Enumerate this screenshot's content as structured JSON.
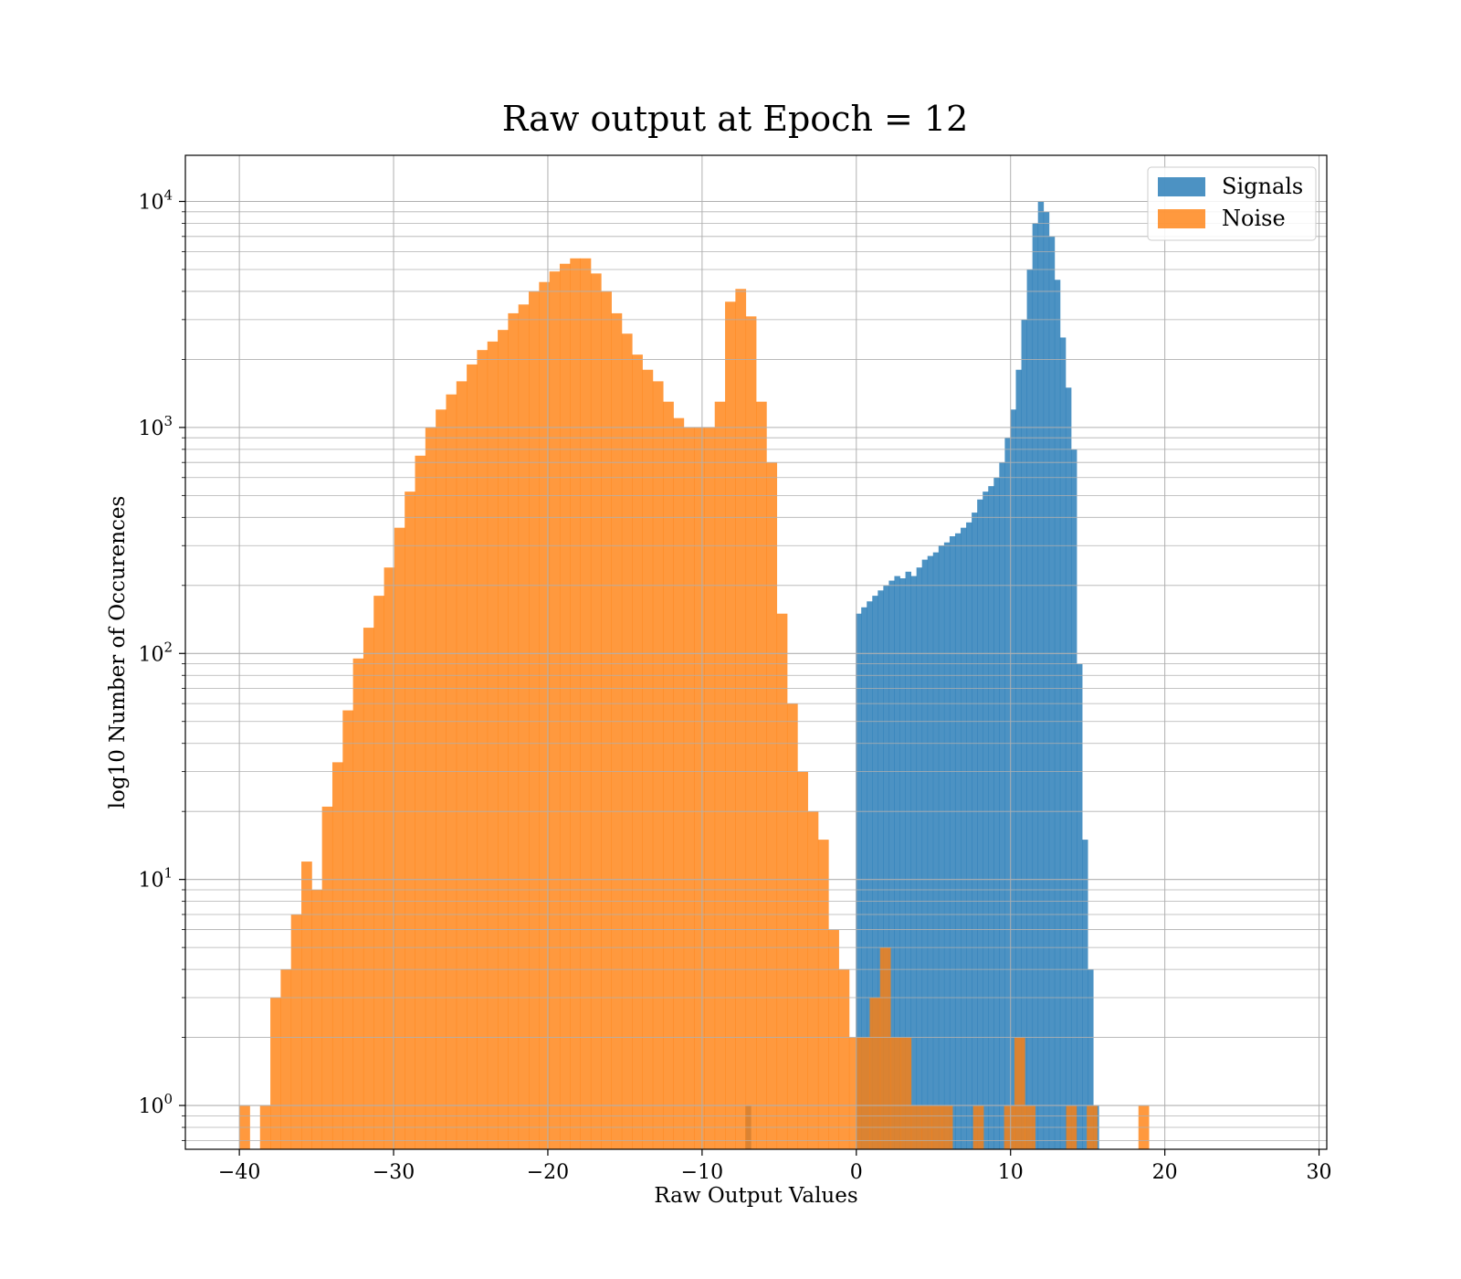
{
  "chart_data": {
    "type": "bar",
    "title": "Raw output at Epoch = 12",
    "xlabel": "Raw Output Values",
    "ylabel": "log10 Number of Occurences",
    "xlim": [
      -43.5,
      30.5
    ],
    "ylim": [
      0.64,
      16000
    ],
    "yscale": "log",
    "grid": true,
    "legend": "top-right",
    "colors": {
      "signals": "#1f77b4",
      "noise": "#ff7f0e",
      "grid": "#b0b0b0"
    },
    "x_ticks": [
      {
        "value": -40,
        "label": "−40"
      },
      {
        "value": -30,
        "label": "−30"
      },
      {
        "value": -20,
        "label": "−20"
      },
      {
        "value": -10,
        "label": "−10"
      },
      {
        "value": 0,
        "label": "0"
      },
      {
        "value": 10,
        "label": "10"
      },
      {
        "value": 20,
        "label": "20"
      },
      {
        "value": 30,
        "label": "30"
      }
    ],
    "y_ticks": [
      {
        "value": 1,
        "base": "10",
        "exp": "0"
      },
      {
        "value": 10,
        "base": "10",
        "exp": "1"
      },
      {
        "value": 100,
        "base": "10",
        "exp": "2"
      },
      {
        "value": 1000,
        "base": "10",
        "exp": "3"
      },
      {
        "value": 10000,
        "base": "10",
        "exp": "4"
      }
    ],
    "series": [
      {
        "name": "Signals",
        "bin_start": -7.2,
        "bin_width": 0.358,
        "alpha": 0.8,
        "counts": [
          1,
          0,
          0,
          0,
          0,
          0,
          0,
          0,
          0,
          0,
          0,
          0,
          0,
          0,
          0,
          0,
          0,
          0,
          0,
          0,
          150,
          160,
          170,
          180,
          190,
          200,
          210,
          220,
          215,
          230,
          220,
          240,
          260,
          270,
          280,
          300,
          310,
          330,
          340,
          360,
          380,
          420,
          480,
          520,
          550,
          600,
          700,
          900,
          1200,
          1800,
          3000,
          5000,
          8000,
          10000,
          9000,
          7000,
          4500,
          2500,
          1500,
          800,
          90,
          15,
          4,
          1
        ]
      },
      {
        "name": "Noise",
        "bin_start": -40.0,
        "bin_width": 0.67,
        "alpha": 0.8,
        "counts": [
          1,
          0,
          1,
          3,
          4,
          7,
          12,
          9,
          21,
          33,
          56,
          95,
          130,
          180,
          240,
          360,
          520,
          750,
          1000,
          1200,
          1400,
          1600,
          1900,
          2200,
          2400,
          2700,
          3200,
          3500,
          4000,
          4400,
          4900,
          5300,
          5600,
          5600,
          4800,
          4000,
          3200,
          2600,
          2100,
          1800,
          1600,
          1300,
          1100,
          1000,
          1000,
          1000,
          1300,
          3600,
          4100,
          3100,
          1300,
          700,
          150,
          60,
          30,
          20,
          15,
          6,
          4,
          2,
          2,
          3,
          5,
          2,
          2,
          1,
          1,
          1,
          1,
          0,
          0,
          1,
          0,
          0,
          1,
          2,
          1,
          0,
          0,
          0,
          1,
          0,
          1,
          0,
          0,
          0,
          0,
          1
        ]
      }
    ]
  }
}
